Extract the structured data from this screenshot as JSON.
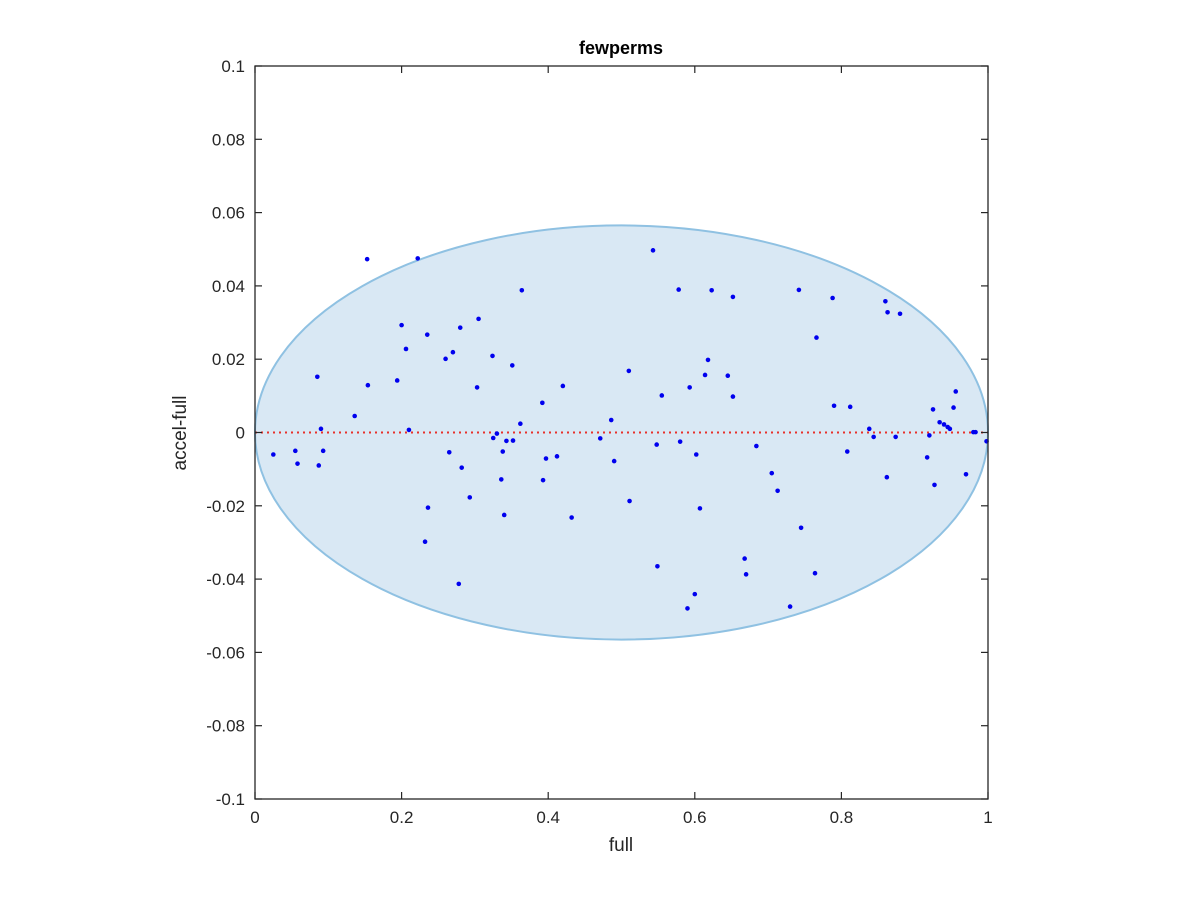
{
  "chart_data": {
    "type": "scatter",
    "title": "fewperms",
    "xlabel": "full",
    "ylabel": "accel-full",
    "xlim": [
      0,
      1
    ],
    "ylim": [
      -0.1,
      0.1
    ],
    "x_ticks": [
      0,
      0.2,
      0.4,
      0.6,
      0.8,
      1
    ],
    "x_tick_labels": [
      "0",
      "0.2",
      "0.4",
      "0.6",
      "0.8",
      "1"
    ],
    "y_ticks": [
      -0.1,
      -0.08,
      -0.06,
      -0.04,
      -0.02,
      0,
      0.02,
      0.04,
      0.06,
      0.08,
      0.1
    ],
    "y_tick_labels": [
      "-0.1",
      "-0.08",
      "-0.06",
      "-0.04",
      "-0.02",
      "0",
      "0.02",
      "0.04",
      "0.06",
      "0.08",
      "0.1"
    ],
    "grid": false,
    "reference_line": {
      "y": 0,
      "style": "dotted",
      "color": "#e8312a"
    },
    "ellipse_region": {
      "center": [
        0.5,
        0.0
      ],
      "x_radius": 0.5,
      "y_radius": 0.0565,
      "fill": "#d9e8f4",
      "stroke": "#8fc1e2"
    },
    "series": [
      {
        "marker_color": "#0000ee",
        "points": [
          [
            0.025,
            -0.006
          ],
          [
            0.055,
            -0.005
          ],
          [
            0.058,
            -0.0085
          ],
          [
            0.085,
            0.0152
          ],
          [
            0.087,
            -0.009
          ],
          [
            0.09,
            0.001
          ],
          [
            0.093,
            -0.005
          ],
          [
            0.136,
            0.0045
          ],
          [
            0.153,
            0.0473
          ],
          [
            0.154,
            0.0129
          ],
          [
            0.194,
            0.0142
          ],
          [
            0.2,
            0.0293
          ],
          [
            0.206,
            0.0228
          ],
          [
            0.21,
            0.0007
          ],
          [
            0.222,
            0.0475
          ],
          [
            0.232,
            -0.0298
          ],
          [
            0.235,
            0.0267
          ],
          [
            0.236,
            -0.0205
          ],
          [
            0.26,
            0.0201
          ],
          [
            0.265,
            -0.0054
          ],
          [
            0.27,
            0.0219
          ],
          [
            0.278,
            -0.0413
          ],
          [
            0.28,
            0.0286
          ],
          [
            0.282,
            -0.0096
          ],
          [
            0.293,
            -0.0177
          ],
          [
            0.303,
            0.0123
          ],
          [
            0.305,
            0.031
          ],
          [
            0.324,
            0.0209
          ],
          [
            0.325,
            -0.0015
          ],
          [
            0.33,
            -0.0003
          ],
          [
            0.336,
            -0.0128
          ],
          [
            0.338,
            -0.0052
          ],
          [
            0.34,
            -0.0225
          ],
          [
            0.343,
            -0.0023
          ],
          [
            0.351,
            0.0183
          ],
          [
            0.352,
            -0.0022
          ],
          [
            0.362,
            0.0024
          ],
          [
            0.364,
            0.0388
          ],
          [
            0.392,
            0.0081
          ],
          [
            0.393,
            -0.013
          ],
          [
            0.397,
            -0.0071
          ],
          [
            0.412,
            -0.0065
          ],
          [
            0.42,
            0.0127
          ],
          [
            0.432,
            -0.0232
          ],
          [
            0.471,
            -0.0016
          ],
          [
            0.486,
            0.0034
          ],
          [
            0.49,
            -0.0078
          ],
          [
            0.51,
            0.0168
          ],
          [
            0.511,
            -0.0187
          ],
          [
            0.543,
            0.0497
          ],
          [
            0.548,
            -0.0033
          ],
          [
            0.549,
            -0.0365
          ],
          [
            0.555,
            0.0101
          ],
          [
            0.578,
            0.039
          ],
          [
            0.58,
            -0.0025
          ],
          [
            0.59,
            -0.048
          ],
          [
            0.593,
            0.0123
          ],
          [
            0.6,
            -0.0441
          ],
          [
            0.602,
            -0.006
          ],
          [
            0.607,
            -0.0207
          ],
          [
            0.614,
            0.0157
          ],
          [
            0.618,
            0.0198
          ],
          [
            0.623,
            0.0388
          ],
          [
            0.645,
            0.0155
          ],
          [
            0.652,
            0.0098
          ],
          [
            0.652,
            0.037
          ],
          [
            0.668,
            -0.0344
          ],
          [
            0.67,
            -0.0387
          ],
          [
            0.684,
            -0.0037
          ],
          [
            0.705,
            -0.0111
          ],
          [
            0.713,
            -0.0159
          ],
          [
            0.73,
            -0.0475
          ],
          [
            0.742,
            0.0389
          ],
          [
            0.745,
            -0.026
          ],
          [
            0.764,
            -0.0384
          ],
          [
            0.766,
            0.0259
          ],
          [
            0.788,
            0.0367
          ],
          [
            0.79,
            0.0073
          ],
          [
            0.808,
            -0.0052
          ],
          [
            0.812,
            0.007
          ],
          [
            0.838,
            0.001
          ],
          [
            0.844,
            -0.0012
          ],
          [
            0.86,
            0.0358
          ],
          [
            0.862,
            -0.0122
          ],
          [
            0.863,
            0.0328
          ],
          [
            0.874,
            -0.0012
          ],
          [
            0.88,
            0.0324
          ],
          [
            0.917,
            -0.0068
          ],
          [
            0.92,
            -0.0008
          ],
          [
            0.925,
            0.0063
          ],
          [
            0.927,
            -0.0143
          ],
          [
            0.934,
            0.0028
          ],
          [
            0.94,
            0.0022
          ],
          [
            0.945,
            0.0015
          ],
          [
            0.948,
            0.001
          ],
          [
            0.953,
            0.0068
          ],
          [
            0.956,
            0.0112
          ],
          [
            0.97,
            -0.0114
          ],
          [
            0.98,
            0.0001
          ],
          [
            0.983,
            0.0001
          ],
          [
            0.998,
            -0.0024
          ]
        ]
      }
    ]
  }
}
